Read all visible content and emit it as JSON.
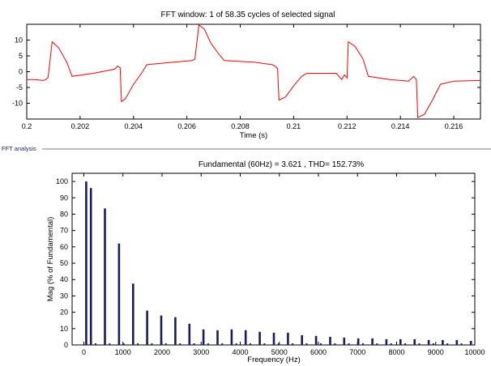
{
  "section_label": "FFT analysis",
  "chart_data": [
    {
      "type": "line",
      "title": "FFT window: 1 of 58.35 cycles of selected signal",
      "xlabel": "Time (s)",
      "ylabel": "",
      "xlim": [
        0.2,
        0.217
      ],
      "ylim": [
        -15,
        15
      ],
      "xticks": [
        0.2,
        0.202,
        0.204,
        0.206,
        0.208,
        0.21,
        0.212,
        0.214,
        0.216
      ],
      "xtick_labels": [
        "0.2",
        "0.202",
        "0.204",
        "0.206",
        "0.208",
        "0.21",
        "0.212",
        "0.214",
        "0.216"
      ],
      "yticks": [
        10,
        5,
        0,
        -5,
        -10
      ],
      "ytick_labels": [
        "10",
        "5",
        "0",
        "-5",
        "-10"
      ],
      "grid": false,
      "line_color": "#ff0000",
      "series": [
        {
          "x": [
            0.2,
            0.2003,
            0.2006,
            0.2007,
            0.2008,
            0.20095,
            0.2012,
            0.2015,
            0.2017,
            0.2025,
            0.2033,
            0.2034,
            0.2035,
            0.20355,
            0.2037,
            0.204,
            0.2043,
            0.2045,
            0.2055,
            0.2062,
            0.2063,
            0.20645,
            0.20665,
            0.2069,
            0.2072,
            0.2074,
            0.2085,
            0.2092,
            0.2093,
            0.2094,
            0.20945,
            0.2097,
            0.21,
            0.2103,
            0.2105,
            0.2116,
            0.2118,
            0.2119,
            0.212,
            0.21205,
            0.2123,
            0.2126,
            0.2128,
            0.2136,
            0.2143,
            0.2145,
            0.2146,
            0.21465,
            0.2149,
            0.2152,
            0.2155,
            0.216,
            0.217
          ],
          "y": [
            -2.5,
            -2.5,
            -2.8,
            -2.6,
            -1.8,
            9.5,
            7.5,
            3.0,
            -1.5,
            -0.5,
            0.8,
            1.8,
            1.2,
            -9.5,
            -8.5,
            -4.0,
            -0.5,
            2.2,
            3.0,
            3.5,
            4.0,
            14.8,
            13.5,
            9.0,
            5.5,
            3.5,
            3.0,
            2.2,
            1.8,
            1.0,
            -9.0,
            -8.0,
            -4.5,
            -1.5,
            -0.5,
            -0.5,
            -2.5,
            -1.0,
            -2.0,
            9.5,
            8.0,
            4.0,
            -1.5,
            -2.5,
            -3.0,
            -1.5,
            -2.5,
            -14.5,
            -13.5,
            -9.0,
            -4.0,
            -3.0,
            -2.8
          ]
        }
      ]
    },
    {
      "type": "bar",
      "title": "Fundamental (60Hz) = 3.621 , THD= 152.73%",
      "xlabel": "Frequency (Hz)",
      "ylabel": "Mag (% of Fundamental)",
      "xlim": [
        -300,
        10000
      ],
      "ylim": [
        0,
        105
      ],
      "xticks": [
        0,
        1000,
        2000,
        3000,
        4000,
        5000,
        6000,
        7000,
        8000,
        9000,
        10000
      ],
      "xtick_labels": [
        "0",
        "1000",
        "2000",
        "3000",
        "4000",
        "5000",
        "6000",
        "7000",
        "8000",
        "9000",
        "10000"
      ],
      "yticks": [
        0,
        10,
        20,
        30,
        40,
        50,
        60,
        70,
        80,
        90,
        100
      ],
      "ytick_labels": [
        "0",
        "10",
        "20",
        "30",
        "40",
        "50",
        "60",
        "70",
        "80",
        "90",
        "100"
      ],
      "grid": false,
      "bar_color": "#1a1a66",
      "series": [
        {
          "x": [
            60,
            180,
            540,
            900,
            1260,
            1620,
            1980,
            2340,
            2700,
            3060,
            3420,
            3780,
            4140,
            4500,
            4860,
            5220,
            5580,
            5940,
            6300,
            6660,
            7020,
            7380,
            7740,
            8100,
            8460,
            8820,
            9180,
            9540,
            9900
          ],
          "values": [
            100,
            96,
            83.5,
            62,
            37.5,
            21,
            18,
            17,
            13,
            9.5,
            9,
            9.5,
            9,
            8,
            7.5,
            7.5,
            6,
            5.5,
            5,
            4.5,
            4,
            4,
            3.5,
            3.5,
            3.5,
            3,
            3,
            3,
            2.5
          ]
        }
      ],
      "minor_bars": {
        "x": [
          300,
          660,
          1020,
          1380,
          1740,
          2100,
          2460,
          2820,
          3180,
          3540,
          3900,
          4260,
          4620,
          4980,
          5340,
          5700,
          6060,
          6420,
          6780,
          7140,
          7500,
          7860,
          8220,
          8580,
          8940,
          9300,
          9660
        ],
        "values": [
          0.6,
          0.5,
          0.5,
          0.4,
          0.4,
          0.4,
          0.4,
          0.4,
          0.3,
          0.3,
          0.3,
          0.3,
          0.3,
          0.3,
          0.3,
          0.3,
          0.3,
          0.3,
          0.3,
          0.3,
          0.3,
          0.3,
          0.3,
          0.3,
          0.3,
          0.3,
          0.3
        ]
      }
    }
  ]
}
